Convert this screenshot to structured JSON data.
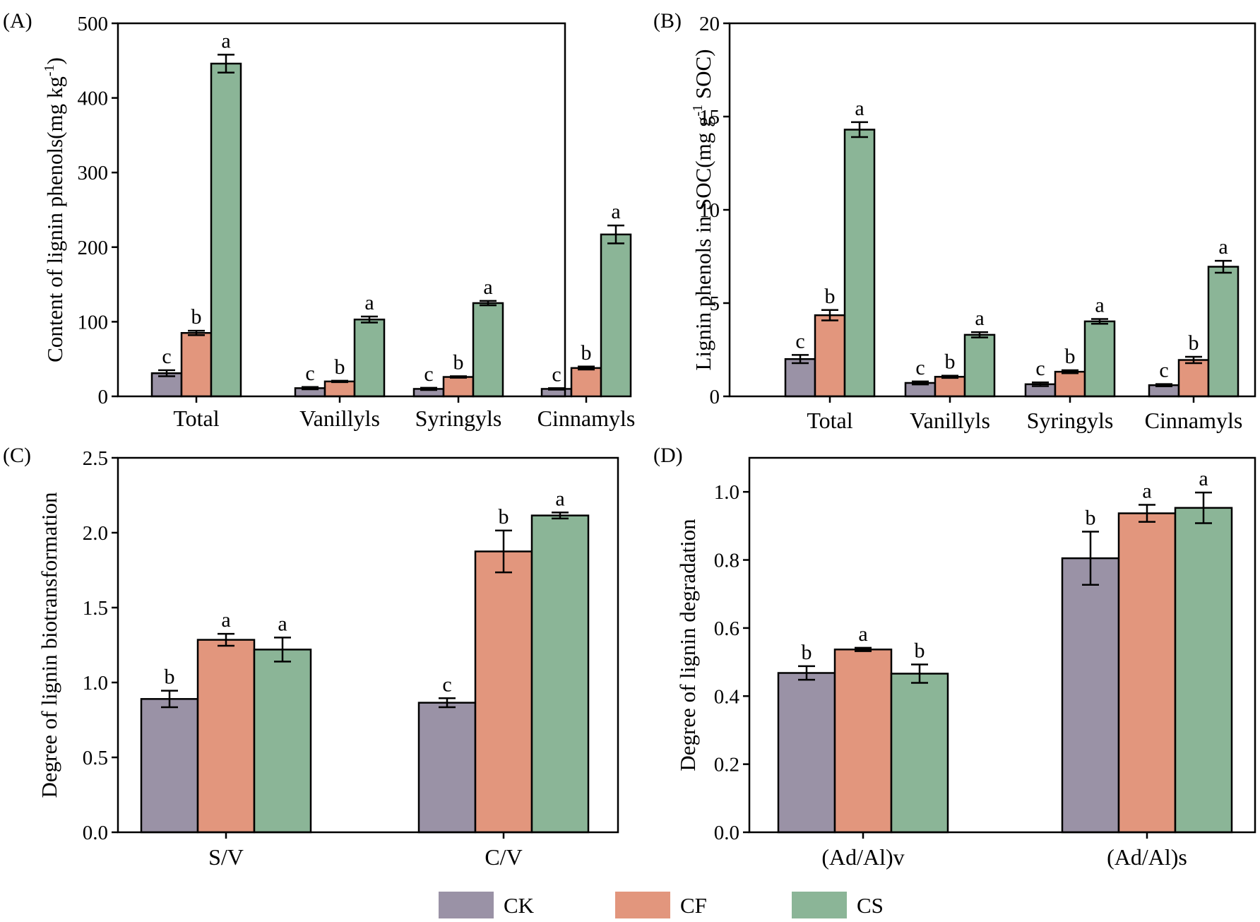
{
  "colors": {
    "CK": "#9a92a6",
    "CF": "#e2967d",
    "CS": "#8bb597"
  },
  "legend": [
    {
      "name": "CK",
      "color": "#9a92a6"
    },
    {
      "name": "CF",
      "color": "#e2967d"
    },
    {
      "name": "CS",
      "color": "#8bb597"
    }
  ],
  "chart_data": [
    {
      "panel_label": "(A)",
      "type": "bar",
      "ylabel": "Content of lignin phenols(mg kg",
      "ylabel_sup": "-1",
      "ylabel_tail": ")",
      "ylim": [
        0,
        500
      ],
      "yticks": [
        0,
        100,
        200,
        300,
        400,
        500
      ],
      "categories": [
        "Total",
        "Vanillyls",
        "Syringyls",
        "Cinnamyls"
      ],
      "series": [
        {
          "name": "CK",
          "values": [
            31,
            11,
            10,
            10
          ],
          "errors": [
            4,
            1.5,
            1.5,
            1
          ],
          "letters": [
            "c",
            "c",
            "c",
            "c"
          ]
        },
        {
          "name": "CF",
          "values": [
            85,
            20,
            26,
            38
          ],
          "errors": [
            3,
            1,
            1,
            2
          ],
          "letters": [
            "b",
            "b",
            "b",
            "b"
          ]
        },
        {
          "name": "CS",
          "values": [
            446,
            103,
            125,
            217
          ],
          "errors": [
            12,
            4,
            3,
            12
          ],
          "letters": [
            "a",
            "a",
            "a",
            "a"
          ]
        }
      ]
    },
    {
      "panel_label": "(B)",
      "type": "bar",
      "ylabel": "Lignin phenols in SOC(mg g",
      "ylabel_sup": "-1",
      "ylabel_tail": " SOC)",
      "ylim": [
        0,
        20
      ],
      "yticks": [
        0,
        5,
        10,
        15,
        20
      ],
      "categories": [
        "Total",
        "Vanillyls",
        "Syringyls",
        "Cinnamyls"
      ],
      "series": [
        {
          "name": "CK",
          "values": [
            2.0,
            0.72,
            0.65,
            0.6
          ],
          "errors": [
            0.22,
            0.08,
            0.1,
            0.06
          ],
          "letters": [
            "c",
            "c",
            "c",
            "c"
          ]
        },
        {
          "name": "CF",
          "values": [
            4.35,
            1.05,
            1.32,
            1.95
          ],
          "errors": [
            0.28,
            0.06,
            0.08,
            0.17
          ],
          "letters": [
            "b",
            "b",
            "b",
            "b"
          ]
        },
        {
          "name": "CS",
          "values": [
            14.3,
            3.3,
            4.02,
            6.95
          ],
          "errors": [
            0.4,
            0.14,
            0.13,
            0.32
          ],
          "letters": [
            "a",
            "a",
            "a",
            "a"
          ]
        }
      ]
    },
    {
      "panel_label": "(C)",
      "type": "bar",
      "ylabel": "Degree of lignin biotransformation",
      "ylim": [
        0,
        2.5
      ],
      "yticks": [
        "0.0",
        "0.5",
        "1.0",
        "1.5",
        "2.0",
        "2.5"
      ],
      "categories": [
        "S/V",
        "C/V"
      ],
      "series": [
        {
          "name": "CK",
          "values": [
            0.89,
            0.865
          ],
          "errors": [
            0.055,
            0.03
          ],
          "letters": [
            "b",
            "c"
          ]
        },
        {
          "name": "CF",
          "values": [
            1.285,
            1.875
          ],
          "errors": [
            0.04,
            0.14
          ],
          "letters": [
            "a",
            "b"
          ]
        },
        {
          "name": "CS",
          "values": [
            1.22,
            2.115
          ],
          "errors": [
            0.08,
            0.02
          ],
          "letters": [
            "a",
            "a"
          ]
        }
      ]
    },
    {
      "panel_label": "(D)",
      "type": "bar",
      "ylabel": "Degree of lignin degradation",
      "ylim": [
        0,
        1.1
      ],
      "yticks": [
        "0.0",
        "0.2",
        "0.4",
        "0.6",
        "0.8",
        "1.0"
      ],
      "categories": [
        "(Ad/Al)v",
        "(Ad/Al)s"
      ],
      "series": [
        {
          "name": "CK",
          "values": [
            0.468,
            0.805
          ],
          "errors": [
            0.02,
            0.078
          ],
          "letters": [
            "b",
            "b"
          ]
        },
        {
          "name": "CF",
          "values": [
            0.537,
            0.937
          ],
          "errors": [
            0.005,
            0.025
          ],
          "letters": [
            "a",
            "a"
          ]
        },
        {
          "name": "CS",
          "values": [
            0.466,
            0.953
          ],
          "errors": [
            0.027,
            0.045
          ],
          "letters": [
            "b",
            "a"
          ]
        }
      ]
    }
  ]
}
